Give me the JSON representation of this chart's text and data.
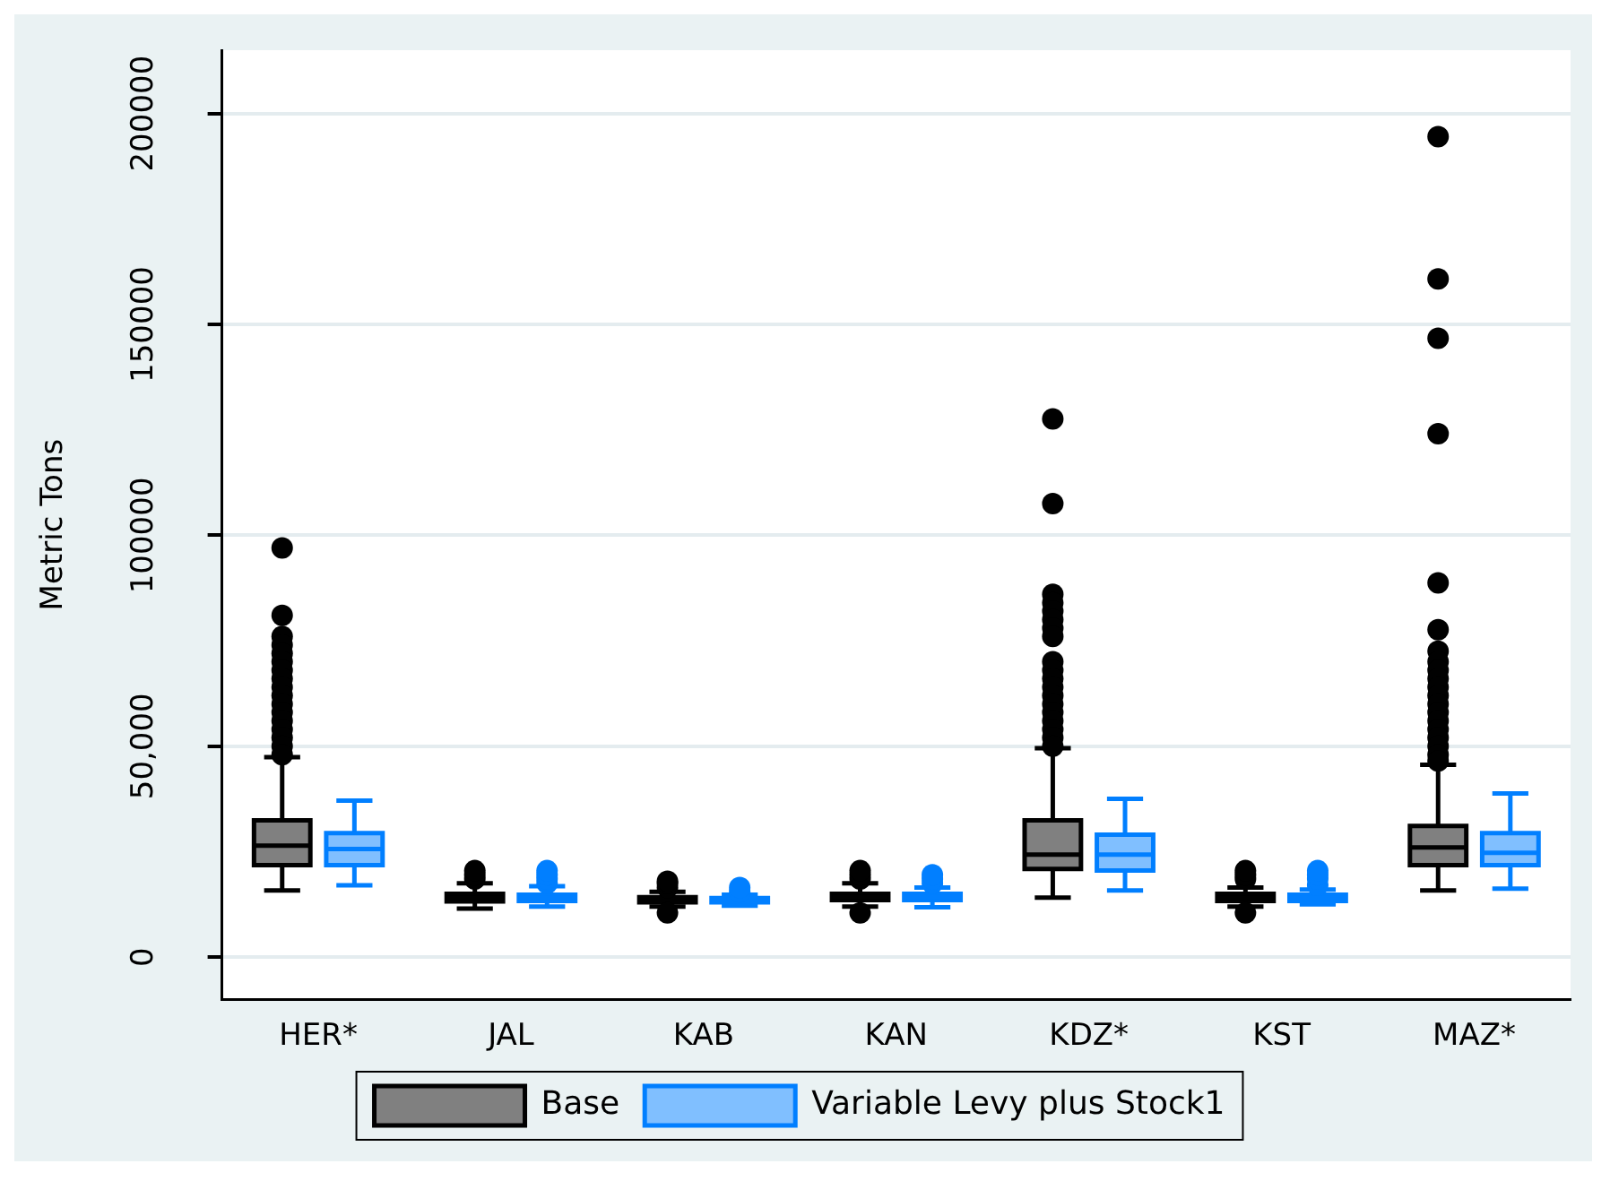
{
  "chart_data": {
    "type": "box",
    "ylabel": "Metric Tons",
    "categories": [
      "HER*",
      "JAL",
      "KAB",
      "KAN",
      "KDZ*",
      "KST",
      "MAZ*"
    ],
    "ylim": [
      -10000,
      215000
    ],
    "yticks": [
      0,
      {
        "value": 50000,
        "label": "50,000"
      },
      100000,
      150000,
      200000
    ],
    "grid": "y",
    "legend": "bottom",
    "series": [
      {
        "name": "Base",
        "color": "#808080",
        "boxes": [
          {
            "low": 15800,
            "q1": 21800,
            "median": 26400,
            "q3": 32400,
            "high": 47400,
            "outliers": [
              97000,
              81000,
              76000,
              74000,
              72000,
              70000,
              68000,
              66000,
              64000,
              62000,
              60000,
              58000,
              56000,
              54000,
              52000,
              50000,
              48000
            ]
          },
          {
            "low": 11500,
            "q1": 13200,
            "median": 14000,
            "q3": 15000,
            "high": 17500,
            "outliers": [
              18500,
              19500,
              20500
            ]
          },
          {
            "low": 12000,
            "q1": 13000,
            "median": 13500,
            "q3": 14200,
            "high": 15500,
            "outliers": [
              10500,
              16500,
              17500,
              18000
            ]
          },
          {
            "low": 12000,
            "q1": 13500,
            "median": 14200,
            "q3": 15000,
            "high": 17500,
            "outliers": [
              10500,
              18500,
              19500,
              20500
            ]
          },
          {
            "low": 14100,
            "q1": 20900,
            "median": 24300,
            "q3": 32400,
            "high": 49500,
            "outliers": [
              127600,
              107500,
              86000,
              84000,
              82000,
              80000,
              78000,
              76000,
              70000,
              68000,
              66000,
              64000,
              62000,
              60000,
              58000,
              56000,
              54000,
              52000,
              50000
            ]
          },
          {
            "low": 12000,
            "q1": 13300,
            "median": 14000,
            "q3": 15000,
            "high": 16500,
            "outliers": [
              10500,
              18500,
              19500,
              20500
            ]
          },
          {
            "low": 15800,
            "q1": 21800,
            "median": 26000,
            "q3": 31100,
            "high": 45600,
            "outliers": [
              194500,
              160800,
              146700,
              124100,
              88700,
              77600,
              72500,
              70000,
              68000,
              66000,
              64000,
              62000,
              60000,
              58000,
              56000,
              54000,
              52000,
              50000,
              48000,
              46500
            ]
          }
        ]
      },
      {
        "name": "Variable Levy plus Stock1",
        "color": "#80bfff",
        "boxes": [
          {
            "low": 17000,
            "q1": 21800,
            "median": 25600,
            "q3": 29400,
            "high": 37100
          },
          {
            "low": 12000,
            "q1": 13300,
            "median": 14000,
            "q3": 14800,
            "high": 16800,
            "outliers": [
              17500,
              18500,
              19500,
              20500
            ]
          },
          {
            "low": 12200,
            "q1": 13000,
            "median": 13500,
            "q3": 14000,
            "high": 14800,
            "outliers": [
              15500,
              16500
            ]
          },
          {
            "low": 11800,
            "q1": 13500,
            "median": 14200,
            "q3": 15000,
            "high": 16500,
            "outliers": [
              17500,
              18500,
              19500
            ]
          },
          {
            "low": 15800,
            "q1": 20500,
            "median": 24300,
            "q3": 29000,
            "high": 37500
          },
          {
            "low": 12500,
            "q1": 13300,
            "median": 14000,
            "q3": 14800,
            "high": 16000,
            "outliers": [
              17000,
              18500,
              19500,
              20500
            ]
          },
          {
            "low": 16200,
            "q1": 21800,
            "median": 24700,
            "q3": 29400,
            "high": 38800
          }
        ]
      }
    ]
  }
}
